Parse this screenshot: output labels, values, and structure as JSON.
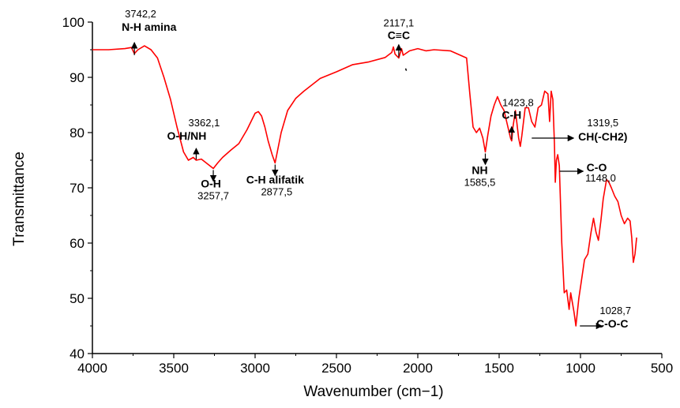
{
  "chart_data": {
    "type": "line",
    "title": "",
    "xlabel": "Wavenumber (cm−1)",
    "ylabel": "Transmittance",
    "xlim": [
      4000,
      500
    ],
    "ylim": [
      40,
      100
    ],
    "x_reversed": true,
    "x_ticks": [
      4000,
      3500,
      3000,
      2500,
      2000,
      1500,
      1000,
      500
    ],
    "y_ticks": [
      40,
      50,
      60,
      70,
      80,
      90,
      100
    ],
    "grid": false,
    "legend": "none",
    "series": [
      {
        "color": "#ff0000",
        "points": [
          [
            4000,
            95.0
          ],
          [
            3900,
            95.0
          ],
          [
            3800,
            95.2
          ],
          [
            3760,
            95.4
          ],
          [
            3742,
            94.3
          ],
          [
            3720,
            95.0
          ],
          [
            3680,
            95.7
          ],
          [
            3640,
            95.0
          ],
          [
            3600,
            93.5
          ],
          [
            3560,
            90.0
          ],
          [
            3520,
            86.0
          ],
          [
            3480,
            81.0
          ],
          [
            3440,
            76.5
          ],
          [
            3410,
            75.0
          ],
          [
            3380,
            75.5
          ],
          [
            3362,
            75.0
          ],
          [
            3330,
            75.2
          ],
          [
            3300,
            74.5
          ],
          [
            3257,
            73.5
          ],
          [
            3230,
            74.5
          ],
          [
            3200,
            75.5
          ],
          [
            3150,
            76.8
          ],
          [
            3100,
            78.0
          ],
          [
            3050,
            80.5
          ],
          [
            3000,
            83.5
          ],
          [
            2980,
            83.8
          ],
          [
            2960,
            83.0
          ],
          [
            2940,
            81.0
          ],
          [
            2920,
            78.5
          ],
          [
            2895,
            76.0
          ],
          [
            2877,
            74.5
          ],
          [
            2860,
            77.0
          ],
          [
            2840,
            80.0
          ],
          [
            2800,
            84.0
          ],
          [
            2750,
            86.2
          ],
          [
            2700,
            87.5
          ],
          [
            2600,
            89.8
          ],
          [
            2500,
            91.0
          ],
          [
            2400,
            92.3
          ],
          [
            2300,
            92.8
          ],
          [
            2200,
            93.6
          ],
          [
            2160,
            94.5
          ],
          [
            2150,
            95.5
          ],
          [
            2140,
            94.2
          ],
          [
            2117,
            93.5
          ],
          [
            2100,
            95.2
          ],
          [
            2090,
            94.0
          ],
          [
            2050,
            94.8
          ],
          [
            2000,
            95.2
          ],
          [
            1950,
            94.8
          ],
          [
            1900,
            95.0
          ],
          [
            1800,
            94.8
          ],
          [
            1700,
            93.5
          ],
          [
            1680,
            87.0
          ],
          [
            1660,
            81.0
          ],
          [
            1640,
            80.0
          ],
          [
            1620,
            80.8
          ],
          [
            1600,
            79.0
          ],
          [
            1585,
            76.5
          ],
          [
            1570,
            79.5
          ],
          [
            1550,
            83.0
          ],
          [
            1530,
            85.0
          ],
          [
            1510,
            86.5
          ],
          [
            1490,
            85.0
          ],
          [
            1470,
            84.0
          ],
          [
            1450,
            81.5
          ],
          [
            1430,
            79.0
          ],
          [
            1423,
            78.5
          ],
          [
            1415,
            81.0
          ],
          [
            1400,
            84.0
          ],
          [
            1380,
            79.0
          ],
          [
            1370,
            77.5
          ],
          [
            1360,
            79.5
          ],
          [
            1340,
            84.5
          ],
          [
            1320,
            84.5
          ],
          [
            1300,
            82.0
          ],
          [
            1280,
            81.0
          ],
          [
            1260,
            84.5
          ],
          [
            1240,
            85.0
          ],
          [
            1220,
            87.5
          ],
          [
            1200,
            87.0
          ],
          [
            1190,
            82.0
          ],
          [
            1180,
            87.5
          ],
          [
            1170,
            86.0
          ],
          [
            1160,
            78.0
          ],
          [
            1155,
            71.0
          ],
          [
            1148,
            75.0
          ],
          [
            1140,
            76.0
          ],
          [
            1130,
            74.0
          ],
          [
            1115,
            60.0
          ],
          [
            1100,
            51.0
          ],
          [
            1085,
            51.5
          ],
          [
            1070,
            48.0
          ],
          [
            1060,
            51.0
          ],
          [
            1040,
            47.5
          ],
          [
            1028,
            45.0
          ],
          [
            1010,
            50.0
          ],
          [
            995,
            53.0
          ],
          [
            975,
            57.0
          ],
          [
            955,
            58.0
          ],
          [
            935,
            62.0
          ],
          [
            920,
            64.5
          ],
          [
            905,
            62.0
          ],
          [
            890,
            60.5
          ],
          [
            875,
            64.0
          ],
          [
            860,
            68.0
          ],
          [
            840,
            71.5
          ],
          [
            825,
            71.0
          ],
          [
            810,
            70.0
          ],
          [
            790,
            68.5
          ],
          [
            770,
            67.5
          ],
          [
            750,
            65.0
          ],
          [
            730,
            63.5
          ],
          [
            710,
            64.5
          ],
          [
            695,
            64.0
          ],
          [
            685,
            61.0
          ],
          [
            675,
            56.5
          ],
          [
            665,
            58.0
          ],
          [
            655,
            61.0
          ]
        ]
      }
    ],
    "annotations": [
      {
        "value": "3742,2",
        "group": "N-H amina",
        "x": 3742,
        "y": 94.3,
        "arrow": "up"
      },
      {
        "value": "3362,1",
        "group": "O-H/NH",
        "x": 3362,
        "y": 75.0,
        "arrow": "up"
      },
      {
        "value": "3257,7",
        "group": "O-H",
        "x": 3257,
        "y": 73.5,
        "arrow": "down"
      },
      {
        "value": "2877,5",
        "group": "C-H alifatik",
        "x": 2877,
        "y": 74.5,
        "arrow": "down"
      },
      {
        "value": "2117,1",
        "group": "C≡C",
        "x": 2117,
        "y": 93.5,
        "arrow": "up"
      },
      {
        "value": "1585,5",
        "group": "NH",
        "x": 1585,
        "y": 76.5,
        "arrow": "down"
      },
      {
        "value": "1423,8",
        "group": "C-H",
        "x": 1423,
        "y": 78.5,
        "arrow": "up"
      },
      {
        "value": "1319,5",
        "group": "CH(-CH2)",
        "x": 1319,
        "y": 79.0,
        "arrow": "right"
      },
      {
        "value": "1148,0",
        "group": "C-O",
        "x": 1148,
        "y": 73.0,
        "arrow": "right"
      },
      {
        "value": "1028,7",
        "group": "C-O-C",
        "x": 1028,
        "y": 45.0,
        "arrow": "right"
      }
    ]
  }
}
